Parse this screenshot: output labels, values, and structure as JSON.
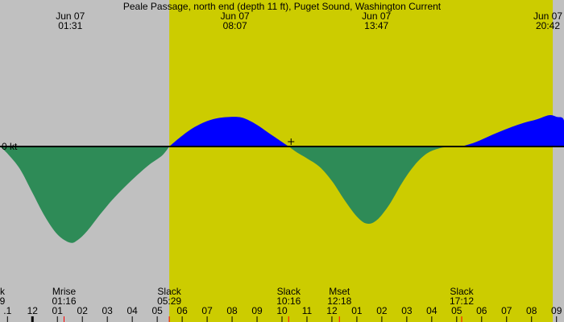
{
  "title": "Peale Passage, north end (depth 11 ft), Puget Sound, Washington Current",
  "colors": {
    "background": "#c0c0c0",
    "daylight": "#cccc00",
    "flood": "#0000ff",
    "ebb": "#2e8b57",
    "axis": "#000000",
    "tick_red": "#ff0000"
  },
  "chart_data": {
    "type": "area",
    "title": "Peale Passage, north end (depth 11 ft), Puget Sound, Washington Current",
    "zero_label": "0 kt",
    "x_range_hours": [
      -1.3,
      21.3
    ],
    "y_range_kt": [
      -1.75,
      0.7
    ],
    "daylight": {
      "start": "05:29",
      "end": "20:51"
    },
    "top_labels": [
      {
        "date": "Jun 07",
        "time": "01:31",
        "hour": 1.517
      },
      {
        "date": "Jun 07",
        "time": "08:07",
        "hour": 8.117
      },
      {
        "date": "Jun 07",
        "time": "13:47",
        "hour": 13.783
      },
      {
        "date": "Jun 07",
        "time": "20:42",
        "hour": 20.7
      }
    ],
    "events": [
      {
        "name": "k",
        "time": "9",
        "hour": -1.25
      },
      {
        "name": "Mrise",
        "time": "01:16",
        "hour": 1.267
      },
      {
        "name": "Slack",
        "time": "05:29",
        "hour": 5.483
      },
      {
        "name": "Slack",
        "time": "10:16",
        "hour": 10.267
      },
      {
        "name": "Mset",
        "time": "12:18",
        "hour": 12.3
      },
      {
        "name": "Slack",
        "time": "17:12",
        "hour": 17.2
      }
    ],
    "hour_ticks": [
      {
        "label": ".1",
        "hour": -1
      },
      {
        "label": "12",
        "hour": 0
      },
      {
        "label": "01",
        "hour": 1
      },
      {
        "label": "02",
        "hour": 2
      },
      {
        "label": "03",
        "hour": 3
      },
      {
        "label": "04",
        "hour": 4
      },
      {
        "label": "05",
        "hour": 5
      },
      {
        "label": "06",
        "hour": 6
      },
      {
        "label": "07",
        "hour": 7
      },
      {
        "label": "08",
        "hour": 8
      },
      {
        "label": "09",
        "hour": 9
      },
      {
        "label": "10",
        "hour": 10
      },
      {
        "label": "11",
        "hour": 11
      },
      {
        "label": "12",
        "hour": 12
      },
      {
        "label": "01",
        "hour": 13
      },
      {
        "label": "02",
        "hour": 14
      },
      {
        "label": "03",
        "hour": 15
      },
      {
        "label": "04",
        "hour": 16
      },
      {
        "label": "05",
        "hour": 17
      },
      {
        "label": "06",
        "hour": 18
      },
      {
        "label": "07",
        "hour": 19
      },
      {
        "label": "08",
        "hour": 20
      },
      {
        "label": "09",
        "hour": 21
      }
    ],
    "series": [
      {
        "x": [
          -1.3,
          -1.0,
          -0.5,
          0.0,
          0.5,
          1.0,
          1.5,
          1.8,
          2.2,
          2.7,
          3.2,
          3.7,
          4.2,
          4.7,
          5.2,
          5.48,
          6.0,
          6.5,
          7.0,
          7.5,
          8.1,
          8.5,
          9.0,
          9.5,
          10.27,
          10.6,
          11.0,
          11.5,
          12.0,
          12.5,
          13.0,
          13.4,
          13.8,
          14.3,
          14.8,
          15.3,
          15.8,
          16.3,
          16.8,
          17.2,
          17.7,
          18.2,
          18.7,
          19.2,
          19.7,
          20.2,
          20.7,
          21.0,
          21.3
        ],
        "y": [
          0.0,
          -0.12,
          -0.38,
          -0.78,
          -1.18,
          -1.48,
          -1.62,
          -1.58,
          -1.42,
          -1.15,
          -0.9,
          -0.68,
          -0.48,
          -0.3,
          -0.15,
          0.0,
          0.2,
          0.36,
          0.47,
          0.53,
          0.55,
          0.52,
          0.4,
          0.24,
          0.0,
          -0.1,
          -0.2,
          -0.34,
          -0.58,
          -0.9,
          -1.18,
          -1.3,
          -1.24,
          -0.98,
          -0.62,
          -0.32,
          -0.12,
          -0.03,
          0.0,
          0.0,
          0.07,
          0.17,
          0.27,
          0.36,
          0.44,
          0.5,
          0.58,
          0.55,
          0.48
        ]
      }
    ]
  }
}
